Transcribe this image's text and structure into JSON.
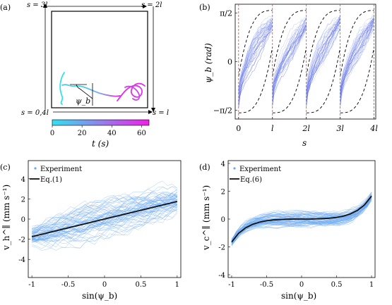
{
  "colors": {
    "cyan": "#33e0f0",
    "magenta": "#f020e8",
    "trace_blue": "#6aa8f0",
    "dense_blue": "#2a38d8",
    "fit_black": "#111111",
    "dashed_red": "#e04040"
  },
  "panels": {
    "a": {
      "label": "(a)",
      "corner_labels": [
        "s = 3l",
        "s = 2l",
        "s = 0,4l",
        "s = l"
      ],
      "angle_label": "ψ_b",
      "colorbar": {
        "ticks": [
          "0",
          "20",
          "40",
          "60"
        ],
        "label": "t (s)",
        "range": [
          0,
          65
        ]
      }
    },
    "b": {
      "label": "(b)",
      "ylabel": "ψ_b (rad)",
      "xlabel": "s",
      "xticks": [
        "0",
        "l",
        "2l",
        "3l",
        "4l"
      ],
      "yticks": [
        "π/2",
        "0",
        "−π/2"
      ]
    },
    "c": {
      "label": "(c)",
      "legend": [
        "Experiment",
        "Eq.(1)"
      ],
      "ylabel": "v_h^∥ (mm s⁻¹)",
      "xlabel": "sin(ψ_b)"
    },
    "d": {
      "label": "(d)",
      "legend": [
        "Experiment",
        "Eq.(6)"
      ],
      "ylabel": "v_c^∥ (mm s⁻¹)",
      "xlabel": "sin(ψ_b)"
    }
  },
  "chart_data": [
    {
      "type": "line",
      "panel": "b",
      "x": [
        0,
        1,
        2,
        3,
        4
      ],
      "xlim": [
        -0.1,
        4.05
      ],
      "ylim": [
        -1.85,
        1.85
      ],
      "period_lines": [
        0,
        1,
        2,
        3,
        4
      ],
      "note_envelope": "dashed envelope bounding the traces in each period"
    },
    {
      "type": "line",
      "panel": "c",
      "xlim": [
        -1.05,
        1.05
      ],
      "ylim": [
        -5.8,
        5.8
      ],
      "xticks": [
        "-1",
        "-0.5",
        "0",
        "0.5",
        "1"
      ],
      "yticks": [
        "4",
        "2",
        "0",
        "-2",
        "-4"
      ],
      "series": [
        {
          "name": "Eq.(1)",
          "x": [
            -1,
            1
          ],
          "y": [
            -1.75,
            1.75
          ]
        }
      ]
    },
    {
      "type": "line",
      "panel": "d",
      "xlim": [
        -1.05,
        1.05
      ],
      "ylim": [
        -4.2,
        4.2
      ],
      "xticks": [
        "-1",
        "-0.5",
        "0",
        "0.5",
        "1"
      ],
      "yticks": [
        "4",
        "2",
        "0",
        "-2",
        "-4"
      ],
      "series": [
        {
          "name": "Eq.(6)",
          "x": [
            -1,
            -0.9,
            -0.8,
            -0.7,
            -0.6,
            -0.5,
            -0.4,
            -0.3,
            -0.2,
            -0.1,
            0,
            0.1,
            0.2,
            0.3,
            0.4,
            0.5,
            0.6,
            0.7,
            0.8,
            0.9,
            1
          ],
          "y": [
            -1.65,
            -1.02,
            -0.63,
            -0.38,
            -0.22,
            -0.12,
            -0.06,
            -0.03,
            -0.01,
            0,
            0,
            0,
            0.01,
            0.03,
            0.06,
            0.12,
            0.22,
            0.38,
            0.63,
            1.02,
            1.65
          ]
        }
      ]
    }
  ]
}
